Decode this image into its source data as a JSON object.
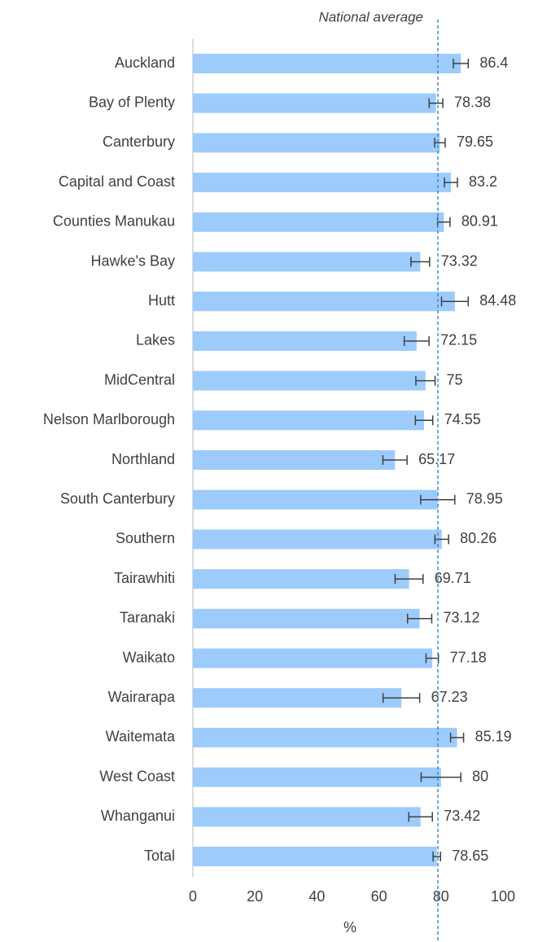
{
  "chart_data": {
    "type": "bar",
    "orientation": "horizontal",
    "categories": [
      "Auckland",
      "Bay of Plenty",
      "Canterbury",
      "Capital and Coast",
      "Counties Manukau",
      "Hawke's Bay",
      "Hutt",
      "Lakes",
      "MidCentral",
      "Nelson Marlborough",
      "Northland",
      "South Canterbury",
      "Southern",
      "Tairawhiti",
      "Taranaki",
      "Waikato",
      "Wairarapa",
      "Waitemata",
      "West Coast",
      "Whanganui",
      "Total"
    ],
    "values": [
      86.4,
      78.38,
      79.65,
      83.2,
      80.91,
      73.32,
      84.48,
      72.15,
      75,
      74.55,
      65.17,
      78.95,
      80.26,
      69.71,
      73.12,
      77.18,
      67.23,
      85.19,
      80,
      73.42,
      78.65
    ],
    "errors": [
      2.4,
      2.2,
      1.7,
      2.1,
      2,
      3,
      4.3,
      4,
      3.1,
      2.8,
      3.9,
      5.5,
      2.2,
      4.5,
      3.9,
      2,
      5.9,
      2.1,
      6.4,
      3.8,
      1.2
    ],
    "color": "#9dcbfb",
    "error_color": "#404040",
    "xlim": [
      0,
      100
    ],
    "xticks": [
      0,
      20,
      40,
      60,
      80,
      100
    ],
    "xlabel": "%",
    "reference_line": {
      "value": 79,
      "label": "National average",
      "color": "#3a8fd0"
    }
  }
}
